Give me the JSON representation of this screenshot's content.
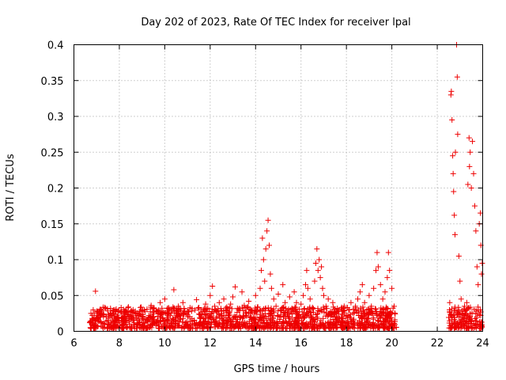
{
  "chart_data": {
    "type": "scatter",
    "title": "Day 202 of 2023, Rate Of TEC Index for receiver lpal",
    "xlabel": "GPS time / hours",
    "ylabel": "ROTI / TECUs",
    "xlim": [
      6,
      24
    ],
    "ylim": [
      0,
      0.4
    ],
    "x_ticks": [
      6,
      8,
      10,
      12,
      14,
      16,
      18,
      20,
      22,
      24
    ],
    "x_tick_labels": [
      "6",
      "8",
      "10",
      "12",
      "14",
      "16",
      "18",
      "20",
      "22",
      "24"
    ],
    "y_ticks": [
      0,
      0.05,
      0.1,
      0.15,
      0.2,
      0.25,
      0.3,
      0.35,
      0.4
    ],
    "y_tick_labels": [
      "0",
      "0.05",
      "0.1",
      "0.15",
      "0.2",
      "0.25",
      "0.3",
      "0.35",
      "0.4"
    ],
    "grid": true,
    "legend": "none",
    "marker": "+",
    "color": "#ee0000",
    "series": [
      {
        "points": [
          [
            6.7,
            0.012
          ],
          [
            6.75,
            0.025
          ],
          [
            6.8,
            0.018
          ],
          [
            6.85,
            0.03
          ],
          [
            6.9,
            0.008
          ],
          [
            6.95,
            0.056
          ],
          [
            7.0,
            0.022
          ],
          [
            7.05,
            0.015
          ],
          [
            7.1,
            0.028
          ],
          [
            7.2,
            0.012
          ],
          [
            7.3,
            0.02
          ],
          [
            7.4,
            0.032
          ],
          [
            7.5,
            0.01
          ],
          [
            7.6,
            0.024
          ],
          [
            7.7,
            0.016
          ],
          [
            7.8,
            0.03
          ],
          [
            7.9,
            0.018
          ],
          [
            8.0,
            0.014
          ],
          [
            8.1,
            0.026
          ],
          [
            8.2,
            0.02
          ],
          [
            8.3,
            0.012
          ],
          [
            8.4,
            0.034
          ],
          [
            8.5,
            0.022
          ],
          [
            8.6,
            0.016
          ],
          [
            8.7,
            0.028
          ],
          [
            8.8,
            0.01
          ],
          [
            8.9,
            0.024
          ],
          [
            9.0,
            0.018
          ],
          [
            9.1,
            0.03
          ],
          [
            9.2,
            0.014
          ],
          [
            9.3,
            0.022
          ],
          [
            9.4,
            0.036
          ],
          [
            9.5,
            0.02
          ],
          [
            9.6,
            0.012
          ],
          [
            9.7,
            0.028
          ],
          [
            9.8,
            0.04
          ],
          [
            9.9,
            0.018
          ],
          [
            10.0,
            0.045
          ],
          [
            10.1,
            0.025
          ],
          [
            10.2,
            0.03
          ],
          [
            10.3,
            0.015
          ],
          [
            10.4,
            0.058
          ],
          [
            10.5,
            0.022
          ],
          [
            10.6,
            0.035
          ],
          [
            10.7,
            0.018
          ],
          [
            10.8,
            0.04
          ],
          [
            10.9,
            0.012
          ],
          [
            11.0,
            0.028
          ],
          [
            11.1,
            0.02
          ],
          [
            11.2,
            0.032
          ],
          [
            11.3,
            0.015
          ],
          [
            11.4,
            0.044
          ],
          [
            11.5,
            0.024
          ],
          [
            11.6,
            0.03
          ],
          [
            11.7,
            0.018
          ],
          [
            11.8,
            0.038
          ],
          [
            11.9,
            0.022
          ],
          [
            12.0,
            0.05
          ],
          [
            12.1,
            0.063
          ],
          [
            12.2,
            0.035
          ],
          [
            12.3,
            0.028
          ],
          [
            12.4,
            0.04
          ],
          [
            12.5,
            0.018
          ],
          [
            12.6,
            0.045
          ],
          [
            12.7,
            0.03
          ],
          [
            12.8,
            0.022
          ],
          [
            12.9,
            0.038
          ],
          [
            13.0,
            0.048
          ],
          [
            13.1,
            0.062
          ],
          [
            13.2,
            0.032
          ],
          [
            13.3,
            0.02
          ],
          [
            13.4,
            0.055
          ],
          [
            13.5,
            0.036
          ],
          [
            13.6,
            0.025
          ],
          [
            13.7,
            0.042
          ],
          [
            13.8,
            0.03
          ],
          [
            13.9,
            0.018
          ],
          [
            14.0,
            0.05
          ],
          [
            14.1,
            0.034
          ],
          [
            14.2,
            0.06
          ],
          [
            14.25,
            0.085
          ],
          [
            14.3,
            0.13
          ],
          [
            14.35,
            0.1
          ],
          [
            14.4,
            0.07
          ],
          [
            14.45,
            0.115
          ],
          [
            14.5,
            0.14
          ],
          [
            14.55,
            0.155
          ],
          [
            14.6,
            0.12
          ],
          [
            14.65,
            0.08
          ],
          [
            14.7,
            0.06
          ],
          [
            14.8,
            0.045
          ],
          [
            14.9,
            0.035
          ],
          [
            15.0,
            0.052
          ],
          [
            15.1,
            0.03
          ],
          [
            15.2,
            0.065
          ],
          [
            15.3,
            0.04
          ],
          [
            15.4,
            0.025
          ],
          [
            15.5,
            0.048
          ],
          [
            15.6,
            0.032
          ],
          [
            15.7,
            0.055
          ],
          [
            15.8,
            0.04
          ],
          [
            15.9,
            0.022
          ],
          [
            16.0,
            0.038
          ],
          [
            16.1,
            0.05
          ],
          [
            16.2,
            0.065
          ],
          [
            16.25,
            0.085
          ],
          [
            16.3,
            0.06
          ],
          [
            16.4,
            0.045
          ],
          [
            16.5,
            0.032
          ],
          [
            16.6,
            0.07
          ],
          [
            16.65,
            0.095
          ],
          [
            16.7,
            0.115
          ],
          [
            16.75,
            0.085
          ],
          [
            16.8,
            0.1
          ],
          [
            16.85,
            0.075
          ],
          [
            16.9,
            0.09
          ],
          [
            16.95,
            0.06
          ],
          [
            17.0,
            0.05
          ],
          [
            17.1,
            0.035
          ],
          [
            17.2,
            0.045
          ],
          [
            17.3,
            0.028
          ],
          [
            17.4,
            0.04
          ],
          [
            17.5,
            0.02
          ],
          [
            17.6,
            0.032
          ],
          [
            17.7,
            0.018
          ],
          [
            17.8,
            0.028
          ],
          [
            17.9,
            0.035
          ],
          [
            18.0,
            0.022
          ],
          [
            18.1,
            0.03
          ],
          [
            18.2,
            0.04
          ],
          [
            18.3,
            0.025
          ],
          [
            18.4,
            0.035
          ],
          [
            18.5,
            0.045
          ],
          [
            18.6,
            0.055
          ],
          [
            18.7,
            0.065
          ],
          [
            18.8,
            0.04
          ],
          [
            18.9,
            0.03
          ],
          [
            19.0,
            0.05
          ],
          [
            19.1,
            0.035
          ],
          [
            19.2,
            0.06
          ],
          [
            19.3,
            0.085
          ],
          [
            19.35,
            0.11
          ],
          [
            19.4,
            0.09
          ],
          [
            19.5,
            0.065
          ],
          [
            19.6,
            0.045
          ],
          [
            19.7,
            0.055
          ],
          [
            19.8,
            0.075
          ],
          [
            19.85,
            0.11
          ],
          [
            19.9,
            0.085
          ],
          [
            20.0,
            0.06
          ],
          [
            20.1,
            0.035
          ],
          [
            22.55,
            0.04
          ],
          [
            22.6,
            0.33
          ],
          [
            22.62,
            0.335
          ],
          [
            22.65,
            0.295
          ],
          [
            22.68,
            0.245
          ],
          [
            22.7,
            0.22
          ],
          [
            22.72,
            0.195
          ],
          [
            22.75,
            0.162
          ],
          [
            22.78,
            0.135
          ],
          [
            22.8,
            0.25
          ],
          [
            22.85,
            0.4
          ],
          [
            22.88,
            0.355
          ],
          [
            22.9,
            0.275
          ],
          [
            22.95,
            0.105
          ],
          [
            23.0,
            0.07
          ],
          [
            23.05,
            0.045
          ],
          [
            23.1,
            0.025
          ],
          [
            23.2,
            0.035
          ],
          [
            23.3,
            0.04
          ],
          [
            23.35,
            0.205
          ],
          [
            23.4,
            0.27
          ],
          [
            23.42,
            0.23
          ],
          [
            23.45,
            0.25
          ],
          [
            23.5,
            0.2
          ],
          [
            23.55,
            0.265
          ],
          [
            23.6,
            0.22
          ],
          [
            23.65,
            0.175
          ],
          [
            23.7,
            0.14
          ],
          [
            23.75,
            0.09
          ],
          [
            23.8,
            0.065
          ],
          [
            23.85,
            0.15
          ],
          [
            23.9,
            0.165
          ],
          [
            23.92,
            0.12
          ],
          [
            23.95,
            0.08
          ],
          [
            23.98,
            0.095
          ]
        ]
      }
    ]
  }
}
